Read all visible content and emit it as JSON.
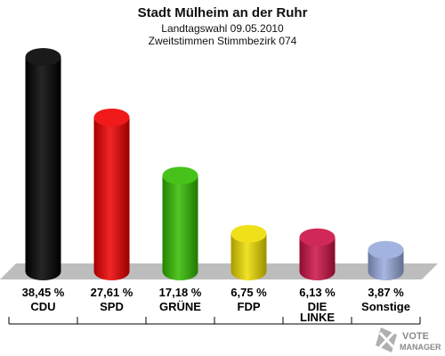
{
  "header": {
    "title": "Stadt Mülheim an der Ruhr",
    "subtitle1": "Landtagswahl 09.05.2010",
    "subtitle2": "Zweitstimmen Stimmbezirk 074"
  },
  "logo": {
    "line1": "VOTE",
    "line2": "MANAGER"
  },
  "chart_data": {
    "type": "bar",
    "title": "Stadt Mülheim an der Ruhr",
    "subtitle": "Landtagswahl 09.05.2010 / Zweitstimmen Stimmbezirk 074",
    "categories": [
      [
        "CDU"
      ],
      [
        "SPD"
      ],
      [
        "GRÜNE"
      ],
      [
        "FDP"
      ],
      [
        "DIE",
        "LINKE"
      ],
      [
        "Sonstige"
      ]
    ],
    "values": [
      38.45,
      27.61,
      17.18,
      6.75,
      6.13,
      3.87
    ],
    "value_labels": [
      "38,45 %",
      "27,61 %",
      "17,18 %",
      "6,75 %",
      "6,13 %",
      "3,87 %"
    ],
    "colors": [
      "#000000",
      "#ee0000",
      "#33bb00",
      "#eedd00",
      "#cc1144",
      "#99aadd"
    ],
    "unit": "%",
    "ylim": [
      0,
      38.45
    ],
    "grid": false,
    "legend": "none"
  }
}
